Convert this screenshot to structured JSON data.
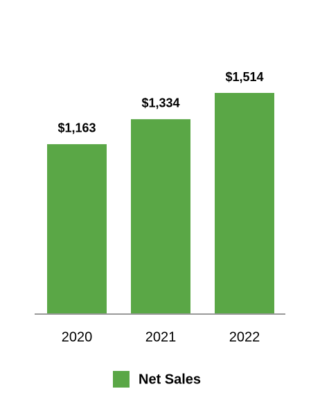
{
  "chart_data": {
    "type": "bar",
    "categories": [
      "2020",
      "2021",
      "2022"
    ],
    "series": [
      {
        "name": "Net Sales",
        "color": "#5aa746",
        "values": [
          1163,
          1334,
          1514
        ],
        "value_labels": [
          "$1,163",
          "$1,334",
          "$1,514"
        ]
      }
    ]
  }
}
